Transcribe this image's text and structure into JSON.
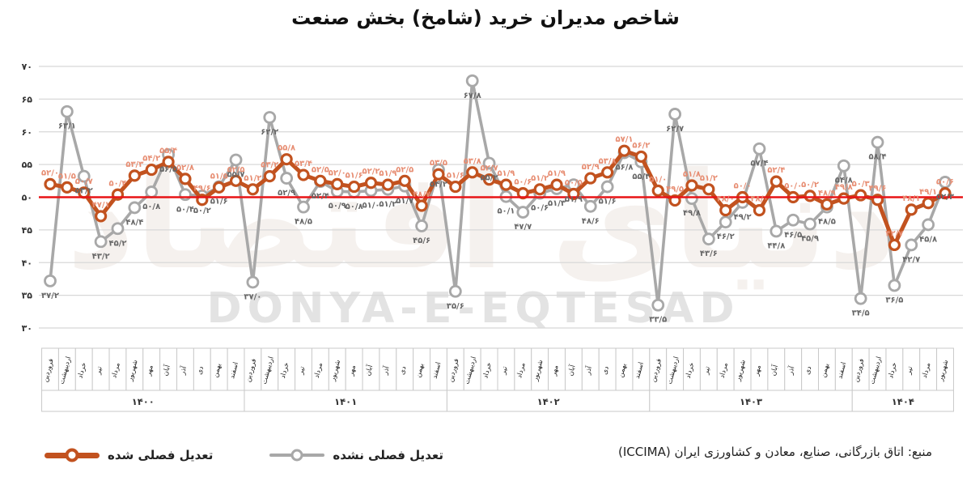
{
  "title": "شاخص مدیران خرید (شامخ) بخش صنعت",
  "watermark": {
    "latin": "DONYA-E-EQTESAD",
    "persian": "دنیای اقتصاد"
  },
  "source": "منبع: اتاق بازرگانی، صنایع، معادن و کشاورزی ایران (ICCIMA)",
  "legend": {
    "adjusted": "تعدیل فصلی شده",
    "unadjusted": "تعدیل فصلی نشده"
  },
  "colors": {
    "adjusted_line": "#c2521f",
    "adjusted_label": "#e78d72",
    "unadjusted_line": "#a8a8a8",
    "unadjusted_label": "#666666",
    "reference_line": "#e81416",
    "grid": "#d8d8d8"
  },
  "chart_data": {
    "type": "line",
    "title": "شاخص مدیران خرید (شامخ) بخش صنعت",
    "y_axis": {
      "min": 30,
      "max": 70,
      "step": 5,
      "tick_labels": [
        "۳۰",
        "۳۵",
        "۴۰",
        "۴۵",
        "۵۰",
        "۵۵",
        "۶۰",
        "۶۵",
        "۷۰"
      ]
    },
    "reference_line": 50,
    "grid": true,
    "legend_position": "bottom-left",
    "month_names": [
      "فروردین",
      "اردیبهشت",
      "خرداد",
      "تیر",
      "مرداد",
      "شهریور",
      "مهر",
      "آبان",
      "آذر",
      "دی",
      "بهمن",
      "اسفند"
    ],
    "year_groups": [
      {
        "label": "۱۴۰۰",
        "months": 12
      },
      {
        "label": "۱۴۰۱",
        "months": 12
      },
      {
        "label": "۱۴۰۲",
        "months": 12
      },
      {
        "label": "۱۴۰۳",
        "months": 12
      },
      {
        "label": "۱۴۰۴",
        "months": 6
      }
    ],
    "series": [
      {
        "name": "تعدیل فصلی شده",
        "color": "#c2521f",
        "values": [
          52.0,
          51.5,
          50.7,
          47.1,
          50.4,
          53.3,
          54.2,
          55.4,
          52.8,
          49.6,
          51.5,
          52.5,
          51.2,
          53.2,
          55.8,
          53.4,
          52.5,
          52.0,
          51.6,
          52.2,
          51.9,
          52.5,
          48.7,
          53.5,
          51.6,
          53.8,
          52.7,
          51.9,
          50.6,
          51.2,
          51.9,
          50.5,
          52.9,
          53.8,
          57.1,
          56.2,
          51.0,
          49.5,
          51.8,
          51.2,
          48.0,
          50.0,
          48.0,
          52.4,
          50.0,
          50.2,
          48.9,
          49.8,
          50.3,
          49.6,
          42.7,
          48.1,
          49.1,
          50.6
        ]
      },
      {
        "name": "تعدیل فصلی نشده",
        "color": "#a8a8a8",
        "values": [
          37.2,
          63.1,
          53.2,
          43.2,
          45.2,
          48.4,
          50.8,
          56.5,
          50.4,
          50.2,
          51.6,
          55.7,
          37.0,
          62.2,
          52.9,
          48.5,
          52.4,
          50.9,
          50.8,
          51.0,
          51.2,
          51.7,
          45.6,
          54.2,
          35.6,
          67.8,
          55.2,
          50.1,
          47.7,
          50.6,
          51.3,
          51.9,
          48.6,
          51.6,
          56.8,
          55.4,
          33.5,
          62.7,
          49.8,
          43.6,
          46.2,
          49.2,
          57.4,
          44.8,
          46.5,
          45.9,
          48.5,
          54.8,
          34.5,
          58.4,
          36.5,
          42.7,
          45.8,
          52.3
        ]
      }
    ]
  }
}
